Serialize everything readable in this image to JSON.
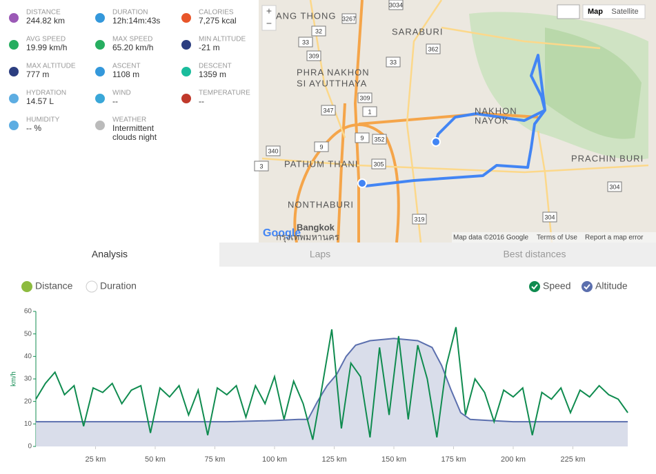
{
  "stats": [
    {
      "label": "DISTANCE",
      "value": "244.82 km"
    },
    {
      "label": "DURATION",
      "value": "12h:14m:43s"
    },
    {
      "label": "CALORIES",
      "value": "7,275 kcal"
    },
    {
      "label": "AVG SPEED",
      "value": "19.99 km/h"
    },
    {
      "label": "MAX SPEED",
      "value": "65.20 km/h"
    },
    {
      "label": "MIN ALTITUDE",
      "value": "-21 m"
    },
    {
      "label": "MAX ALTITUDE",
      "value": "777 m"
    },
    {
      "label": "ASCENT",
      "value": "1108 m"
    },
    {
      "label": "DESCENT",
      "value": "1359 m"
    },
    {
      "label": "HYDRATION",
      "value": "14.57 L"
    },
    {
      "label": "WIND",
      "value": "--"
    },
    {
      "label": "TEMPERATURE",
      "value": "--"
    },
    {
      "label": "HUMIDITY",
      "value": "-- %"
    },
    {
      "label": "WEATHER",
      "value": "Intermittent clouds night"
    }
  ],
  "map": {
    "labels": [
      "ANG THONG",
      "SARABURI",
      "PHRA NAKHON",
      "SI AYUTTHAYA",
      "NAKHON",
      "NAYOK",
      "PATHUM THANI",
      "PRACHIN BURI",
      "NONTHABURI",
      "Bangkok",
      "กรุงเทพมหานคร"
    ],
    "roads": [
      "3034",
      "3267",
      "32",
      "362",
      "33",
      "309",
      "33",
      "309",
      "1",
      "347",
      "352",
      "340",
      "305",
      "3",
      "304",
      "319",
      "304",
      "9",
      "9"
    ],
    "zoom_in": "+",
    "zoom_out": "−",
    "map_button": "Map",
    "satellite_button": "Satellite",
    "logo": "Google",
    "attribution": [
      "Map data ©2016 Google",
      "Terms of Use",
      "Report a map error"
    ]
  },
  "tabs": [
    "Analysis",
    "Laps",
    "Best distances"
  ],
  "legend_left": [
    "Distance",
    "Duration"
  ],
  "chart_data": {
    "type": "line",
    "ylabel": "km/h",
    "xlim": [
      0,
      250
    ],
    "ylim": [
      0,
      60
    ],
    "xticks": [
      {
        "value": 25,
        "label": "25 km"
      },
      {
        "value": 50,
        "label": "50 km"
      },
      {
        "value": 75,
        "label": "75 km"
      },
      {
        "value": 100,
        "label": "100 km"
      },
      {
        "value": 125,
        "label": "125 km"
      },
      {
        "value": 150,
        "label": "150 km"
      },
      {
        "value": 175,
        "label": "175 km"
      },
      {
        "value": 200,
        "label": "200 km"
      },
      {
        "value": 225,
        "label": "225 km"
      }
    ],
    "yticks": [
      0,
      10,
      20,
      30,
      40,
      50,
      60
    ],
    "series": [
      {
        "name": "Speed",
        "color": "#0f8b4f",
        "x": [
          0,
          4,
          8,
          12,
          16,
          20,
          24,
          28,
          32,
          36,
          40,
          44,
          48,
          52,
          56,
          60,
          64,
          68,
          72,
          76,
          80,
          84,
          88,
          92,
          96,
          100,
          104,
          108,
          112,
          116,
          120,
          124,
          128,
          132,
          136,
          140,
          144,
          148,
          152,
          156,
          160,
          164,
          168,
          172,
          176,
          180,
          184,
          188,
          192,
          196,
          200,
          204,
          208,
          212,
          216,
          220,
          224,
          228,
          232,
          236,
          240,
          244,
          248
        ],
        "values": [
          21,
          28,
          33,
          23,
          27,
          9,
          26,
          24,
          28,
          19,
          25,
          27,
          6,
          26,
          22,
          27,
          14,
          25,
          5,
          26,
          23,
          27,
          13,
          27,
          19,
          31,
          12,
          29,
          19,
          3,
          27,
          52,
          8,
          37,
          31,
          4,
          44,
          14,
          49,
          12,
          45,
          30,
          4,
          36,
          53,
          14,
          30,
          24,
          11,
          25,
          22,
          26,
          5,
          24,
          21,
          26,
          15,
          25,
          22,
          27,
          23,
          21,
          15
        ]
      },
      {
        "name": "Altitude",
        "color": "#5b6fae",
        "x": [
          0,
          20,
          40,
          60,
          80,
          100,
          110,
          114,
          118,
          122,
          126,
          130,
          134,
          140,
          150,
          160,
          166,
          170,
          174,
          178,
          182,
          190,
          200,
          220,
          240,
          248
        ],
        "values": [
          11,
          11,
          11,
          11,
          11,
          11.5,
          12,
          12,
          20,
          27,
          32,
          40,
          45,
          47,
          48,
          47,
          44,
          36,
          25,
          15,
          12,
          11.5,
          11,
          11,
          11,
          11
        ]
      }
    ]
  }
}
